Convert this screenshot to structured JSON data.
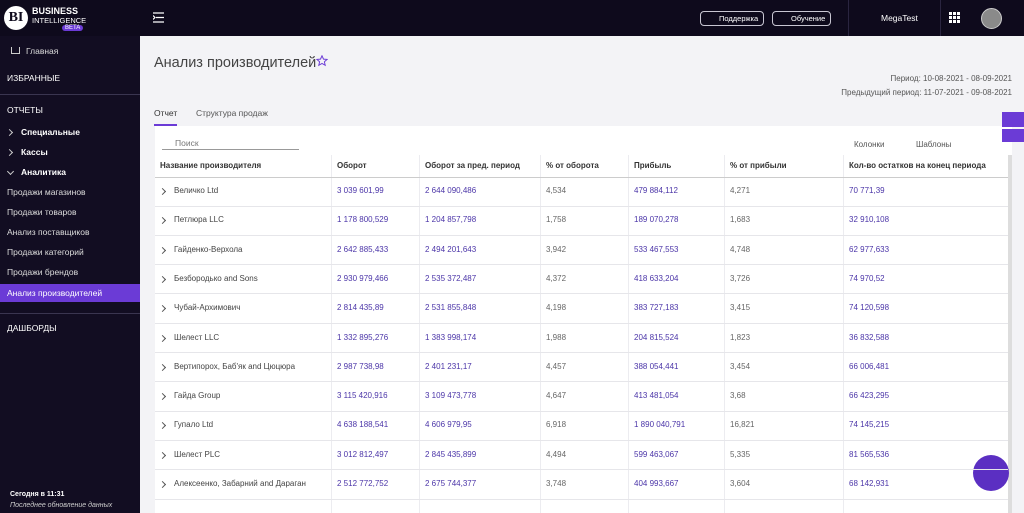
{
  "header": {
    "logo": "BI",
    "brand_line1": "BUSINESS",
    "brand_line2": "INTELLIGENCE",
    "brand_badge": "BETA",
    "support": "Поддержка",
    "training": "Обучение",
    "account": "MegaTest"
  },
  "sidebar": {
    "items": [
      {
        "label": "Главная",
        "kind": "home"
      },
      {
        "label": "ИЗБРАННЫЕ",
        "kind": "section"
      },
      {
        "label": "ОТЧЕТЫ",
        "kind": "section"
      },
      {
        "label": "Специальные",
        "kind": "group"
      },
      {
        "label": "Кассы",
        "kind": "group"
      },
      {
        "label": "Аналитика",
        "kind": "group-open"
      },
      {
        "label": "Продажи магазинов",
        "kind": "sub"
      },
      {
        "label": "Продажи товаров",
        "kind": "sub"
      },
      {
        "label": "Анализ поставщиков",
        "kind": "sub"
      },
      {
        "label": "Продажи категорий",
        "kind": "sub"
      },
      {
        "label": "Продажи брендов",
        "kind": "sub"
      },
      {
        "label": "Анализ производителей",
        "kind": "active"
      },
      {
        "label": "ДАШБОРДЫ",
        "kind": "section"
      }
    ],
    "footer_time": "Сегодня в 11:31",
    "footer_note": "Последнее обновление данных"
  },
  "page": {
    "title": "Анализ производителей",
    "period": "Период: 10-08-2021 - 08-09-2021",
    "previous_period": "Предыдущий период: 11-07-2021 - 09-08-2021",
    "tabs": [
      "Отчет",
      "Структура продаж"
    ],
    "search": "Поиск",
    "columns_button": "Колонки",
    "templates_button": "Шаблоны"
  },
  "table": {
    "columns": [
      "Название производителя",
      "Оборот",
      "Оборот за пред. период",
      "% от оборота",
      "Прибыль",
      "% от прибыли",
      "Кол-во остатков на конец периода"
    ],
    "rows": [
      [
        "Величко Ltd",
        "3 039 601,99",
        "2 644 090,486",
        "4,534",
        "479 884,112",
        "4,271",
        "70 771,39"
      ],
      [
        "Петлюра LLC",
        "1 178 800,529",
        "1 204 857,798",
        "1,758",
        "189 070,278",
        "1,683",
        "32 910,108"
      ],
      [
        "Гайденко-Верхола",
        "2 642 885,433",
        "2 494 201,643",
        "3,942",
        "533 467,553",
        "4,748",
        "62 977,633"
      ],
      [
        "Безбородько and Sons",
        "2 930 979,466",
        "2 535 372,487",
        "4,372",
        "418 633,204",
        "3,726",
        "74 970,52"
      ],
      [
        "Чубай-Архимович",
        "2 814 435,89",
        "2 531 855,848",
        "4,198",
        "383 727,183",
        "3,415",
        "74 120,598"
      ],
      [
        "Шелест LLC",
        "1 332 895,276",
        "1 383 998,174",
        "1,988",
        "204 815,524",
        "1,823",
        "36 832,588"
      ],
      [
        "Вертипорох, Баб'як and Цюцюра",
        "2 987 738,98",
        "2 401 231,17",
        "4,457",
        "388 054,441",
        "3,454",
        "66 006,481"
      ],
      [
        "Гайда Group",
        "3 115 420,916",
        "3 109 473,778",
        "4,647",
        "413 481,054",
        "3,68",
        "66 423,295"
      ],
      [
        "Гупало Ltd",
        "4 638 188,541",
        "4 606 979,95",
        "6,918",
        "1 890 040,791",
        "16,821",
        "74 145,215"
      ],
      [
        "Шелест PLC",
        "3 012 812,497",
        "2 845 435,899",
        "4,494",
        "599 463,067",
        "5,335",
        "81 565,536"
      ],
      [
        "Алексеенко, Забарний and Дараган",
        "2 512 772,752",
        "2 675 744,377",
        "3,748",
        "404 993,667",
        "3,604",
        "68 142,931"
      ]
    ]
  }
}
